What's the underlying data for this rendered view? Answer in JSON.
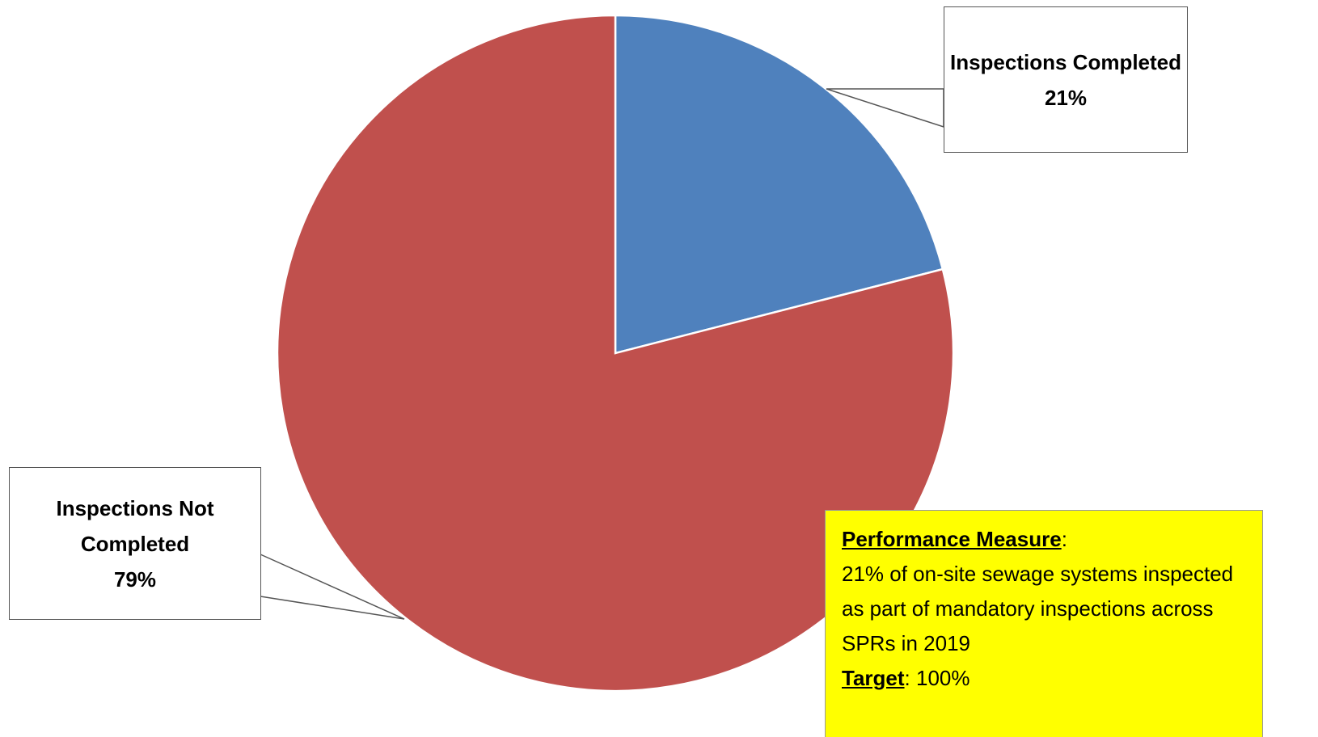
{
  "chart_data": {
    "type": "pie",
    "categories": [
      "Inspections Completed",
      "Inspections Not Completed"
    ],
    "values": [
      21,
      79
    ],
    "value_labels": [
      "21%",
      "79%"
    ],
    "colors": [
      "#4f81bd",
      "#c0504d"
    ],
    "annotation": {
      "lines": [
        [
          {
            "text": "Performance Measure",
            "emphasis": true
          },
          {
            "text": ":"
          }
        ],
        [
          {
            "text": "21% of on-site sewage systems inspected as part of mandatory inspections across SPRs in 2019"
          }
        ],
        [
          {
            "text": "Target",
            "emphasis": true
          },
          {
            "text": ": 100%"
          }
        ]
      ]
    }
  }
}
